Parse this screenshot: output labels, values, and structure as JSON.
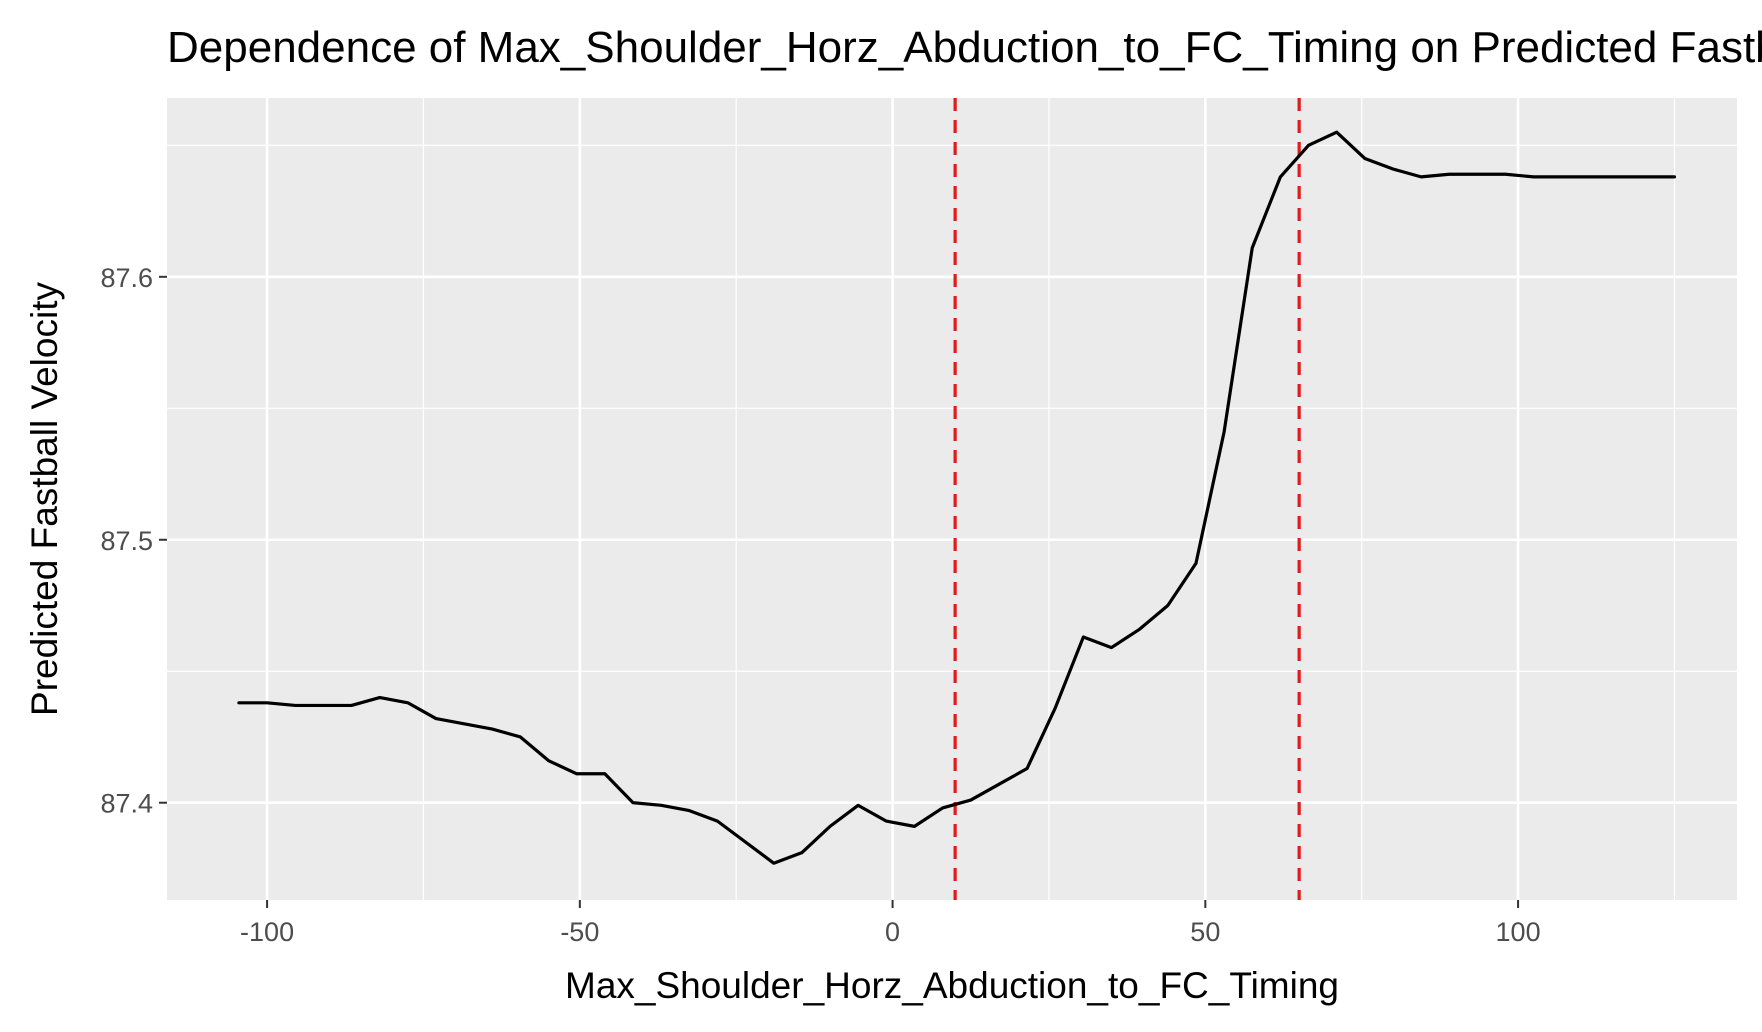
{
  "chart_data": {
    "type": "line",
    "title": "Dependence of Max_Shoulder_Horz_Abduction_to_FC_Timing on Predicted Fastball Velocity",
    "xlabel": "Max_Shoulder_Horz_Abduction_to_FC_Timing",
    "ylabel": "Predicted Fastball Velocity",
    "xlim": [
      -116,
      135
    ],
    "ylim": [
      87.363,
      87.668
    ],
    "x_ticks": [
      -100,
      -50,
      0,
      50,
      100
    ],
    "x_tick_labels": [
      "-100",
      "-50",
      "0",
      "50",
      "100"
    ],
    "y_ticks": [
      87.4,
      87.5,
      87.6
    ],
    "y_tick_labels": [
      "87.4",
      "87.5",
      "87.6"
    ],
    "grid": true,
    "legend": "none",
    "series": [
      {
        "color": "#000000",
        "x": [
          -104.5,
          -100,
          -95.5,
          -91,
          -86.5,
          -82,
          -77.5,
          -73,
          -68.5,
          -64,
          -59.5,
          -55,
          -50.5,
          -46,
          -41.5,
          -37,
          -32.5,
          -28,
          -23.5,
          -19,
          -14.5,
          -10,
          -5.5,
          -1,
          3.5,
          8,
          12.5,
          17,
          21.5,
          26,
          30.5,
          35,
          39.5,
          44,
          48.5,
          53,
          57.5,
          62,
          66.5,
          71,
          75.5,
          80,
          84.5,
          89,
          93.5,
          98,
          102.5,
          107,
          111.5,
          116,
          120.5,
          125
        ],
        "values": [
          87.438,
          87.438,
          87.437,
          87.437,
          87.437,
          87.44,
          87.438,
          87.432,
          87.43,
          87.428,
          87.425,
          87.416,
          87.411,
          87.411,
          87.4,
          87.399,
          87.397,
          87.393,
          87.385,
          87.377,
          87.381,
          87.391,
          87.399,
          87.393,
          87.391,
          87.398,
          87.401,
          87.407,
          87.413,
          87.436,
          87.463,
          87.459,
          87.466,
          87.475,
          87.491,
          87.541,
          87.611,
          87.638,
          87.65,
          87.655,
          87.645,
          87.641,
          87.638,
          87.639,
          87.639,
          87.639,
          87.638,
          87.638,
          87.638,
          87.638,
          87.638,
          87.638
        ]
      }
    ],
    "reference_lines": [
      {
        "axis": "x",
        "value": 10,
        "color": "#e31a1c",
        "style": "dashed"
      },
      {
        "axis": "x",
        "value": 65,
        "color": "#e31a1c",
        "style": "dashed"
      }
    ],
    "colors": {
      "panel_background": "#ebebeb",
      "grid": "#ffffff",
      "tick_text": "#4d4d4d",
      "tick_mark": "#333333"
    }
  }
}
